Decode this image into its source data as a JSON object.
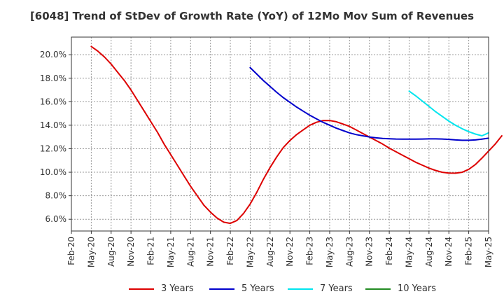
{
  "chart_data": {
    "type": "line",
    "title": "[6048]  Trend of StDev of Growth Rate (YoY) of 12Mo Mov Sum of Revenues",
    "xlabel": "",
    "ylabel": "",
    "ylim": [
      5.0,
      21.5
    ],
    "yticks": [
      6.0,
      8.0,
      10.0,
      12.0,
      14.0,
      16.0,
      18.0,
      20.0
    ],
    "ytick_labels": [
      "6.0%",
      "8.0%",
      "10.0%",
      "12.0%",
      "14.0%",
      "16.0%",
      "18.0%",
      "20.0%"
    ],
    "xticks": [
      "Feb-20",
      "May-20",
      "Aug-20",
      "Nov-20",
      "Feb-21",
      "May-21",
      "Aug-21",
      "Nov-21",
      "Feb-22",
      "May-22",
      "Aug-22",
      "Nov-22",
      "Feb-23",
      "May-23",
      "Aug-23",
      "Nov-23",
      "Feb-24",
      "May-24",
      "Aug-24",
      "Nov-24",
      "Feb-25",
      "May-25"
    ],
    "grid": true,
    "series": [
      {
        "name": "3 Years",
        "color": "#dd0000",
        "start_month_index": 3,
        "values": [
          20.7,
          20.3,
          19.8,
          19.2,
          18.5,
          17.8,
          17.0,
          16.1,
          15.2,
          14.3,
          13.4,
          12.4,
          11.5,
          10.6,
          9.7,
          8.8,
          8.0,
          7.2,
          6.6,
          6.1,
          5.75,
          5.65,
          5.9,
          6.5,
          7.3,
          8.3,
          9.4,
          10.4,
          11.3,
          12.1,
          12.7,
          13.2,
          13.6,
          14.0,
          14.25,
          14.4,
          14.4,
          14.3,
          14.1,
          13.9,
          13.6,
          13.3,
          13.0,
          12.7,
          12.4,
          12.05,
          11.75,
          11.45,
          11.15,
          10.85,
          10.6,
          10.35,
          10.15,
          10.0,
          9.93,
          9.92,
          10.0,
          10.25,
          10.65,
          11.2,
          11.8,
          12.4,
          13.1
        ]
      },
      {
        "name": "5 Years",
        "color": "#0000cc",
        "start_month_index": 27,
        "values": [
          18.9,
          18.35,
          17.8,
          17.3,
          16.8,
          16.35,
          15.95,
          15.55,
          15.2,
          14.85,
          14.55,
          14.25,
          14.0,
          13.75,
          13.55,
          13.35,
          13.2,
          13.1,
          13.0,
          12.93,
          12.88,
          12.85,
          12.83,
          12.82,
          12.82,
          12.82,
          12.83,
          12.84,
          12.84,
          12.83,
          12.8,
          12.75,
          12.72,
          12.72,
          12.75,
          12.82,
          12.9
        ]
      },
      {
        "name": "7 Years",
        "color": "#00e5ee",
        "start_month_index": 51,
        "values": [
          16.9,
          16.5,
          16.05,
          15.6,
          15.15,
          14.75,
          14.35,
          14.0,
          13.7,
          13.45,
          13.25,
          13.1,
          13.35
        ]
      },
      {
        "name": "10 Years",
        "color": "#228b22",
        "start_month_index": 0,
        "values": []
      }
    ]
  }
}
